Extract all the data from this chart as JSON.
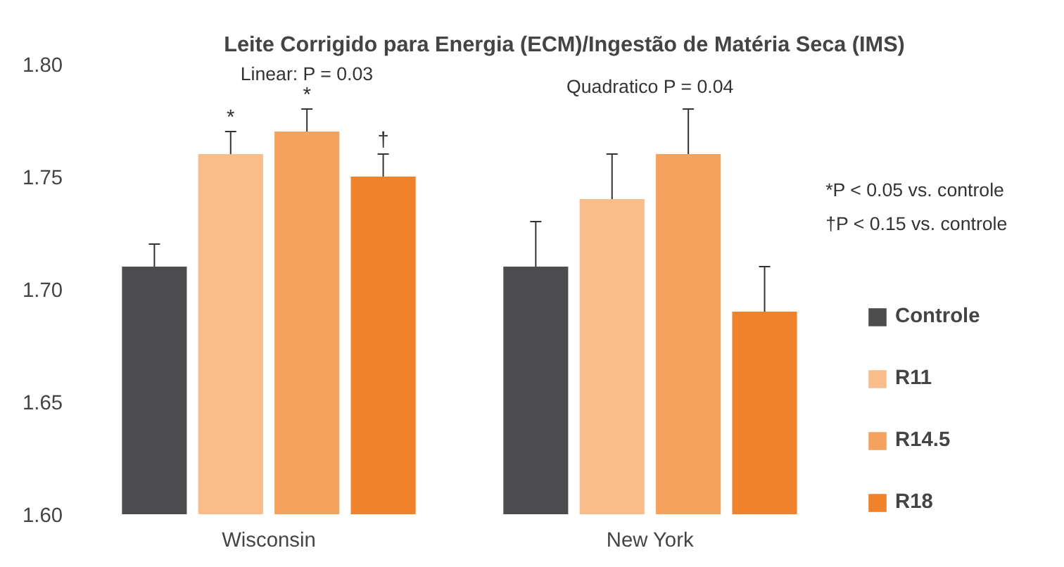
{
  "chart_data": {
    "type": "bar",
    "title": "Leite Corrigido para Energia (ECM)/Ingestão de Matéria Seca (IMS)",
    "categories": [
      "Wisconsin",
      "New York"
    ],
    "series": [
      {
        "name": "Controle",
        "color": "#4d4d4f",
        "values": [
          1.71,
          1.71
        ],
        "errors": [
          0.01,
          0.02
        ]
      },
      {
        "name": "R11",
        "color": "#f9bd8c",
        "values": [
          1.76,
          1.74
        ],
        "errors": [
          0.01,
          0.02
        ]
      },
      {
        "name": "R14.5",
        "color": "#f5a25e",
        "values": [
          1.77,
          1.76
        ],
        "errors": [
          0.01,
          0.02
        ]
      },
      {
        "name": "R18",
        "color": "#f1822c",
        "values": [
          1.75,
          1.69
        ],
        "errors": [
          0.01,
          0.02
        ]
      }
    ],
    "ylim": [
      1.6,
      1.8
    ],
    "yticks": [
      {
        "value": 1.6,
        "label": "1.60"
      },
      {
        "value": 1.65,
        "label": "1.65"
      },
      {
        "value": 1.7,
        "label": "1.70"
      },
      {
        "value": 1.75,
        "label": "1.75"
      },
      {
        "value": 1.8,
        "label": "1.80"
      }
    ],
    "grid": false,
    "legend": "right",
    "annotations": [
      "Linear: P = 0.03",
      "Quadratico P = 0.04",
      "*",
      "*",
      "†",
      "*P < 0.05 vs. controle",
      "†P < 0.15 vs. controle"
    ]
  }
}
